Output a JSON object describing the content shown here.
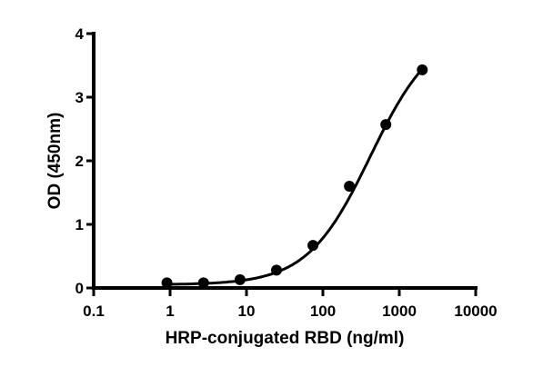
{
  "chart_data": {
    "type": "scatter",
    "title": "",
    "xlabel": "HRP-conjugated RBD (ng/ml)",
    "ylabel": "OD (450nm)",
    "xscale": "log",
    "xlim": [
      0.1,
      10000
    ],
    "ylim": [
      0,
      4
    ],
    "x_ticks": [
      "0.1",
      "1",
      "10",
      "100",
      "1000",
      "10000"
    ],
    "y_ticks": [
      "0",
      "1",
      "2",
      "3",
      "4"
    ],
    "grid": false,
    "legend": null,
    "series": [
      {
        "name": "HRP-conjugated RBD",
        "marker": "filled-circle",
        "fit": "sigmoidal (4PL) curve",
        "x": [
          0.91,
          2.74,
          8.23,
          24.7,
          74.1,
          222.2,
          666.7,
          2000
        ],
        "y": [
          0.08,
          0.08,
          0.13,
          0.28,
          0.67,
          1.6,
          2.57,
          3.43
        ]
      }
    ],
    "colors": {
      "line": "#000000",
      "marker": "#000000"
    }
  }
}
